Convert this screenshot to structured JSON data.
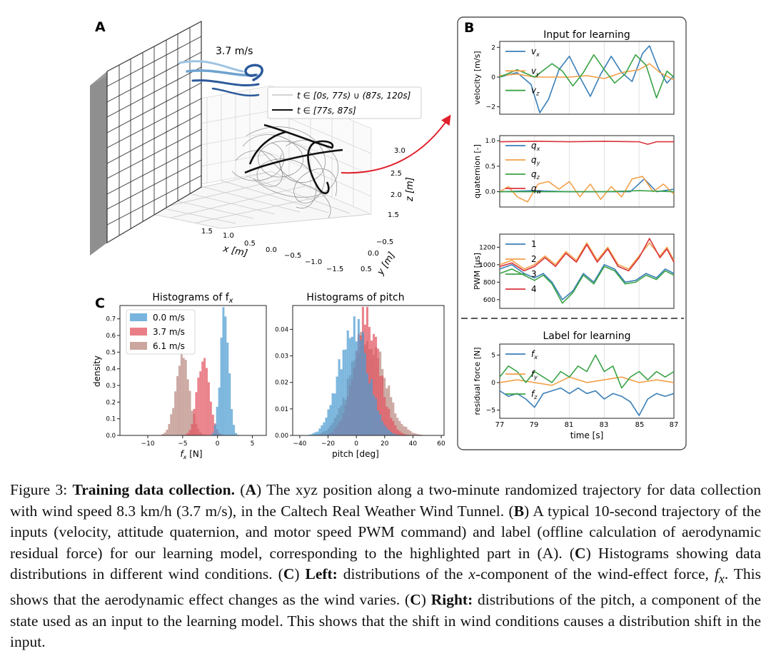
{
  "colors": {
    "blue": "#3a7fb8",
    "orange": "#f2a14a",
    "green": "#3aa346",
    "red": "#d9333c",
    "hist_blue": "#4b9bd1",
    "hist_red": "#e2535f",
    "hist_brown": "#b9887f",
    "wind": "#2c5a9a",
    "arrow": "#e0202b"
  },
  "panelA": {
    "label": "A",
    "wind_speed": "3.7 m/s",
    "legend": [
      "t ∈ [0s, 77s) ∪ (87s, 120s]",
      "t ∈ [77s, 87s]"
    ],
    "x_label": "x [m]",
    "y_label": "y [m]",
    "z_label": "z [m]",
    "x_ticks": [
      "1.5",
      "1.0",
      "0.5",
      "0.0",
      "−0.5",
      "−1.0",
      "−1.5"
    ],
    "y_ticks": [
      "−0.5",
      "0.0",
      "0.5"
    ],
    "z_ticks": [
      "3.0",
      "2.5",
      "2.0",
      "1.5"
    ]
  },
  "panelB": {
    "label": "B",
    "input_title": "Input for learning",
    "label_title": "Label for learning",
    "x_label": "time [s]",
    "x_ticks": [
      "77",
      "79",
      "81",
      "83",
      "85",
      "87"
    ],
    "velocity": {
      "ylabel": "velocity [m/s]",
      "ticks": [
        "2",
        "0",
        "−2"
      ],
      "legend": [
        "v",
        "v",
        "v"
      ],
      "subs": [
        "x",
        "y",
        "z"
      ]
    },
    "quaternion": {
      "ylabel": "quaternion [-]",
      "ticks": [
        "1.0",
        "0.5",
        "0.0"
      ],
      "legend": [
        "q",
        "q",
        "q",
        "q"
      ],
      "subs": [
        "x",
        "y",
        "z",
        "w"
      ]
    },
    "pwm": {
      "ylabel": "PWM [μs]",
      "ticks": [
        "1200",
        "1000",
        "800",
        "600"
      ],
      "legend": [
        "1",
        "2",
        "3",
        "4"
      ]
    },
    "residual": {
      "ylabel": "residual force [N]",
      "ticks": [
        "5",
        "0",
        "−5"
      ],
      "legend": [
        "f",
        "f",
        "f"
      ],
      "subs": [
        "x",
        "y",
        "z"
      ]
    }
  },
  "panelC": {
    "label": "C",
    "left": {
      "title": "Histograms of f",
      "title_sub": "x",
      "xlabel": "f",
      "xlabel_tail": " [N]",
      "xlabel_sub": "x",
      "ylabel": "density",
      "x_ticks": [
        "−10",
        "−5",
        "0",
        "5"
      ],
      "y_ticks": [
        "0.7",
        "0.6",
        "0.5",
        "0.4",
        "0.3",
        "0.2",
        "0.1",
        "0.0"
      ]
    },
    "right": {
      "title": "Histograms of pitch",
      "xlabel": "pitch [deg]",
      "x_ticks": [
        "−40",
        "−20",
        "0",
        "20",
        "40",
        "60"
      ],
      "y_ticks": [
        "0.04",
        "0.03",
        "0.02",
        "0.01",
        "0.00"
      ]
    },
    "legend": [
      "0.0 m/s",
      "3.7 m/s",
      "6.1 m/s"
    ]
  },
  "chart_data": [
    {
      "type": "histogram",
      "title": "Histograms of f_x",
      "xlabel": "f_x [N]",
      "ylabel": "density",
      "xlim": [
        -14,
        7
      ],
      "ylim": [
        0,
        0.78
      ],
      "series": [
        {
          "name": "0.0 m/s",
          "mean": 1.0,
          "std": 0.6,
          "peak": 0.75
        },
        {
          "name": "3.7 m/s",
          "mean": -2.0,
          "std": 0.85,
          "peak": 0.52
        },
        {
          "name": "6.1 m/s",
          "mean": -5.0,
          "std": 1.0,
          "peak": 0.45
        }
      ]
    },
    {
      "type": "histogram",
      "title": "Histograms of pitch",
      "xlabel": "pitch [deg]",
      "ylabel": "",
      "xlim": [
        -45,
        62
      ],
      "ylim": [
        0,
        0.049
      ],
      "series": [
        {
          "name": "0.0 m/s",
          "mean": -2,
          "std": 10,
          "peak": 0.044
        },
        {
          "name": "3.7 m/s",
          "mean": 7,
          "std": 9,
          "peak": 0.047
        },
        {
          "name": "6.1 m/s",
          "mean": 8,
          "std": 12,
          "peak": 0.038
        }
      ]
    },
    {
      "type": "line",
      "title": "velocity",
      "ylabel": "velocity [m/s]",
      "xlim": [
        77,
        87
      ],
      "ylim": [
        -2.5,
        2.4
      ],
      "series": [
        {
          "name": "v_x",
          "x": [
            77,
            78,
            78.8,
            79.3,
            79.8,
            80.4,
            81,
            81.6,
            82.2,
            82.8,
            83.4,
            84,
            84.6,
            85.2,
            85.6,
            86.1,
            86.6,
            87
          ],
          "y": [
            0,
            0.3,
            -0.5,
            -2.4,
            -1.5,
            0.5,
            1.4,
            0,
            -1.3,
            0.2,
            1.4,
            0.3,
            -0.3,
            1.6,
            2.1,
            0.6,
            -0.4,
            0.1
          ]
        },
        {
          "name": "v_y",
          "x": [
            77,
            78,
            79,
            80,
            81,
            82,
            83,
            84,
            85,
            85.6,
            86.2,
            87
          ],
          "y": [
            0.1,
            0.2,
            0,
            0,
            0,
            0.1,
            -0.1,
            0.3,
            0.5,
            0.9,
            0.3,
            -0.2
          ]
        },
        {
          "name": "v_z",
          "x": [
            77,
            78,
            79,
            80,
            80.6,
            81.2,
            81.8,
            82.4,
            83,
            83.6,
            84.2,
            84.8,
            85.4,
            86,
            86.6,
            87
          ],
          "y": [
            0,
            0.5,
            0,
            0.9,
            0.4,
            -0.6,
            0.3,
            1.5,
            0.5,
            -0.4,
            0.2,
            1.5,
            0.8,
            -1.4,
            0.4,
            0
          ]
        }
      ]
    },
    {
      "type": "line",
      "title": "quaternion",
      "ylabel": "quaternion [-]",
      "xlim": [
        77,
        87
      ],
      "ylim": [
        -0.3,
        1.1
      ],
      "series": [
        {
          "name": "q_x",
          "x": [
            77,
            79,
            81,
            83,
            84.5,
            85.3,
            86,
            87
          ],
          "y": [
            0,
            0.02,
            0,
            0,
            0,
            0.25,
            0,
            0.05
          ]
        },
        {
          "name": "q_y",
          "x": [
            77,
            77.5,
            78,
            78.6,
            79.2,
            79.8,
            80.4,
            81,
            81.6,
            82.2,
            82.8,
            83.4,
            84,
            84.6,
            85.2,
            85.8,
            86.4,
            87
          ],
          "y": [
            0,
            0.1,
            -0.1,
            -0.2,
            0.15,
            0.2,
            0.05,
            0.2,
            -0.1,
            0.15,
            -0.15,
            0.1,
            -0.1,
            0.25,
            0.3,
            0,
            0.15,
            -0.05
          ]
        },
        {
          "name": "q_z",
          "x": [
            77,
            79,
            81,
            83,
            85,
            87
          ],
          "y": [
            0,
            0,
            0,
            0,
            0.02,
            0
          ]
        },
        {
          "name": "q_w",
          "x": [
            77,
            79,
            81,
            83,
            85,
            85.5,
            86,
            87
          ],
          "y": [
            0.98,
            0.99,
            0.98,
            0.99,
            0.98,
            0.93,
            0.98,
            0.98
          ]
        }
      ]
    },
    {
      "type": "line",
      "title": "PWM",
      "ylabel": "PWM [μs]",
      "xlim": [
        77,
        87
      ],
      "ylim": [
        500,
        1350
      ],
      "series": [
        {
          "name": "1",
          "x": [
            77,
            77.7,
            78.4,
            79,
            79.5,
            80,
            80.6,
            81.2,
            81.8,
            82.4,
            83,
            83.6,
            84.2,
            84.8,
            85.4,
            86,
            86.5,
            87
          ],
          "y": [
            950,
            1000,
            900,
            850,
            900,
            800,
            600,
            700,
            900,
            800,
            1000,
            950,
            800,
            820,
            900,
            850,
            950,
            900
          ]
        },
        {
          "name": "2",
          "x": [
            77,
            77.7,
            78.4,
            79,
            79.6,
            80.2,
            80.8,
            81.4,
            82,
            82.6,
            83.2,
            83.8,
            84.4,
            85,
            85.6,
            86.2,
            86.6,
            87
          ],
          "y": [
            1000,
            1050,
            950,
            1000,
            1100,
            1000,
            1150,
            1050,
            1250,
            1050,
            1200,
            1000,
            950,
            1100,
            1250,
            1100,
            1200,
            1050
          ]
        },
        {
          "name": "3",
          "x": [
            77,
            77.7,
            78.4,
            79,
            79.5,
            80,
            80.6,
            81.2,
            81.8,
            82.4,
            83,
            83.6,
            84.2,
            84.8,
            85.4,
            86,
            86.5,
            87
          ],
          "y": [
            900,
            950,
            880,
            820,
            880,
            780,
            560,
            680,
            880,
            780,
            980,
            930,
            780,
            800,
            880,
            830,
            930,
            880
          ]
        },
        {
          "name": "4",
          "x": [
            77,
            77.7,
            78.4,
            79,
            79.6,
            80.2,
            80.8,
            81.4,
            82,
            82.6,
            83.2,
            83.8,
            84.4,
            85,
            85.6,
            86.2,
            86.6,
            87
          ],
          "y": [
            980,
            1020,
            930,
            980,
            1080,
            980,
            1130,
            1030,
            1230,
            1030,
            1180,
            980,
            930,
            1080,
            1300,
            1080,
            1180,
            1030
          ]
        }
      ]
    },
    {
      "type": "line",
      "title": "residual force",
      "ylabel": "residual force [N]",
      "xlim": [
        77,
        87
      ],
      "ylim": [
        -6.5,
        7
      ],
      "series": [
        {
          "name": "f_x",
          "x": [
            77,
            77.5,
            78,
            78.5,
            79,
            79.5,
            80,
            80.5,
            81,
            81.5,
            82,
            82.5,
            83,
            83.5,
            84,
            84.5,
            85,
            85.5,
            86,
            86.5,
            87
          ],
          "y": [
            -1.5,
            -2.5,
            -2,
            -3,
            -4.5,
            -2,
            -1.5,
            -1,
            -2,
            -1,
            -2,
            -1.5,
            -3,
            -2,
            -2.5,
            -3.5,
            -6,
            -3,
            -2,
            -2.5,
            -2
          ]
        },
        {
          "name": "f_y",
          "x": [
            77,
            78,
            79,
            80,
            81,
            82,
            83,
            84,
            85,
            86,
            87
          ],
          "y": [
            0,
            0.5,
            0,
            -0.5,
            1,
            0,
            0.5,
            1,
            0,
            0.5,
            0
          ]
        },
        {
          "name": "f_z",
          "x": [
            77,
            77.5,
            78,
            78.5,
            79,
            79.5,
            80,
            80.5,
            81,
            81.5,
            82,
            82.5,
            83,
            83.5,
            84,
            84.5,
            85,
            85.5,
            86,
            86.5,
            87
          ],
          "y": [
            1,
            3,
            2,
            0,
            2,
            1,
            0,
            2,
            1,
            3,
            2,
            5,
            2,
            3,
            -1,
            1,
            2,
            0.5,
            2,
            1,
            2
          ]
        }
      ]
    }
  ],
  "caption": {
    "fig": "Figure 3:",
    "title": "Training data collection.",
    "pA_open": "(",
    "pA_letter": "A",
    "pA_close": ")",
    "s1": " The xyz position along a two-minute randomized trajectory for data collection with wind speed ",
    "speed_kmh": "8.3 km/h",
    "speed_ms": "(3.7 m/s)",
    "s2": ", in the Caltech Real Weather Wind Tunnel. ",
    "pB_open": "(",
    "pB_letter": "B",
    "pB_close": ")",
    "s3": " A typical 10-second trajectory of the inputs (velocity, attitude quaternion, and motor speed PWM command) and label (offline calculation of aerodynamic residual force) for our learning model, corresponding to the highlighted part in (A). ",
    "pC1_open": "(",
    "pC1_letter": "C",
    "pC1_close": ")",
    "s4": " Histograms showing data distributions in different wind conditions. ",
    "pC2_open": "(",
    "pC2_letter": "C",
    "pC2_close": ")",
    "left_lbl": " Left:",
    "s5a": " distributions of the ",
    "x_var": "x",
    "s5b": "-component of the wind-effect force, ",
    "f_var": "f",
    "f_sub": "x",
    "s5c": ". This shows that the aerodynamic effect changes as the wind varies. ",
    "pC3_open": "(",
    "pC3_letter": "C",
    "pC3_close": ")",
    "right_lbl": " Right:",
    "s6": " distributions of the pitch, a component of the state used as an input to the learning model. This shows that the shift in wind conditions causes a distribution shift in the input."
  }
}
